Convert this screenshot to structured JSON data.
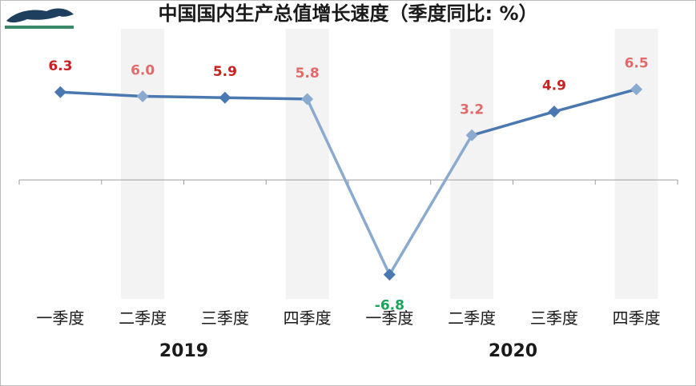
{
  "chart_data": {
    "type": "line",
    "title": "中国国内生产总值增长速度（季度同比: %）",
    "categories": [
      "一季度",
      "二季度",
      "三季度",
      "四季度",
      "一季度",
      "二季度",
      "三季度",
      "四季度"
    ],
    "groups": [
      {
        "label": "2019",
        "from": 0,
        "to": 3
      },
      {
        "label": "2020",
        "from": 4,
        "to": 7
      }
    ],
    "series": [
      {
        "values": [
          6.3,
          6.0,
          5.9,
          5.8,
          -6.8,
          3.2,
          4.9,
          6.5
        ]
      }
    ],
    "value_labels": [
      "6.3",
      "6.0",
      "5.9",
      "5.8",
      "-6.8",
      "3.2",
      "4.9",
      "6.5"
    ],
    "ylim": [
      -9,
      10.5
    ],
    "shaded_columns": [
      1,
      3,
      5,
      7
    ],
    "colors": {
      "line_dark": "#4a78b0",
      "line_light": "#8aaad0",
      "label_dark_red": "#cc1f1f",
      "label_light_red": "#e46a6a",
      "label_negative": "#1aa35a",
      "band": "#f3f3f3",
      "axis": "#9e9e9e"
    }
  }
}
